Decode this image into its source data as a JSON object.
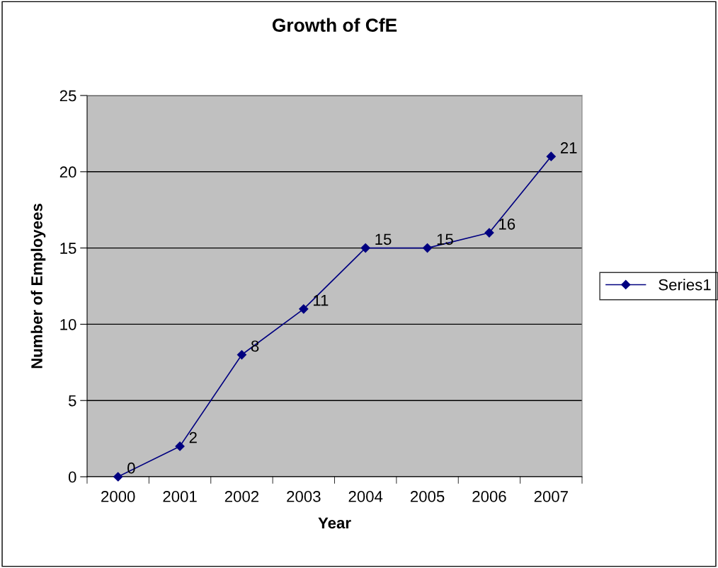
{
  "chart_data": {
    "type": "line",
    "title": "Growth of CfE",
    "xlabel": "Year",
    "ylabel": "Number of Employees",
    "categories": [
      "2000",
      "2001",
      "2002",
      "2003",
      "2004",
      "2005",
      "2006",
      "2007"
    ],
    "series": [
      {
        "name": "Series1",
        "color": "#000080",
        "values": [
          0,
          2,
          8,
          11,
          15,
          15,
          16,
          21
        ]
      }
    ],
    "ylim": [
      0,
      25
    ],
    "yticks": [
      0,
      5,
      10,
      15,
      20,
      25
    ],
    "grid": "y",
    "legend": "right",
    "marker": "diamond",
    "line_style": "solid",
    "data_labels": true
  }
}
